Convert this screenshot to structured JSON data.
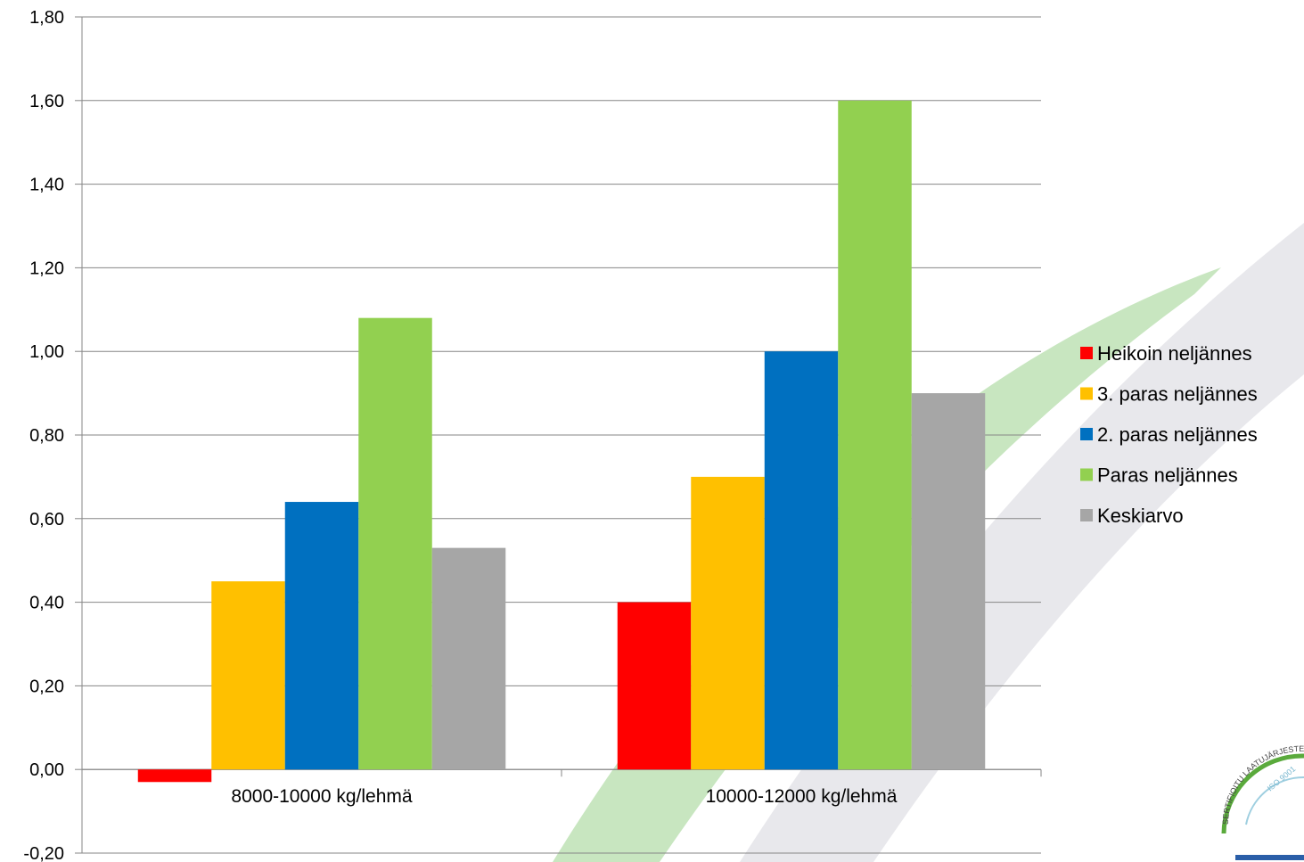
{
  "chart_data": {
    "type": "bar",
    "title": "",
    "xlabel": "",
    "ylabel": "",
    "categories": [
      "8000-10000 kg/lehmä",
      "10000-12000 kg/lehmä"
    ],
    "series": [
      {
        "name": "Heikoin neljännes",
        "color": "#ff0000",
        "values": [
          -0.03,
          0.4
        ]
      },
      {
        "name": "3. paras neljännes",
        "color": "#ffc000",
        "values": [
          0.45,
          0.7
        ]
      },
      {
        "name": "2. paras neljännes",
        "color": "#0070c0",
        "values": [
          0.64,
          1.0
        ]
      },
      {
        "name": "Paras neljännes",
        "color": "#92d050",
        "values": [
          1.08,
          1.6
        ]
      },
      {
        "name": "Keskiarvo",
        "color": "#a6a6a6",
        "values": [
          0.53,
          0.9
        ]
      }
    ],
    "ylim": [
      -0.2,
      1.8
    ],
    "yticks": [
      "-0,20",
      "0,00",
      "0,20",
      "0,40",
      "0,60",
      "0,80",
      "1,00",
      "1,20",
      "1,40",
      "1,60",
      "1,80"
    ],
    "grid": true,
    "legend_position": "right"
  },
  "watermark": {
    "seal_text": "SERTIFIOITU LAATUJÄRJESTELMÄ",
    "seal_sub": "ISO 9001",
    "swoosh_colors": [
      "#c8e6c0",
      "#e8e8ec"
    ]
  }
}
